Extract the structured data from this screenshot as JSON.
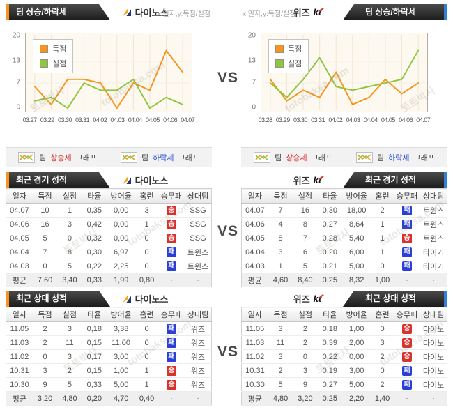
{
  "vs_label": "VS",
  "watermark": {
    "korean": "토토박사",
    "domain": "totobaksa.com"
  },
  "teams": {
    "left": {
      "name": "다이노스"
    },
    "right": {
      "name": "위즈",
      "logo": "kt"
    }
  },
  "sections": {
    "trend": {
      "title": "팀 상승/하락세",
      "axis_hint": "x:일자,y:득점/실점"
    },
    "recent": {
      "title": "최근 경기 성적"
    },
    "h2h": {
      "title": "최근 상대 성적"
    }
  },
  "footer_legend": {
    "rise": {
      "prefix": "팀",
      "label": "상승세",
      "suffix": "그래프"
    },
    "fall": {
      "prefix": "팀",
      "label": "하락세",
      "suffix": "그래프"
    }
  },
  "colors": {
    "score_line": "#f7941d",
    "concede_line": "#8dc63f",
    "win_badge": "#d9322e",
    "loss_badge": "#2b3fd6",
    "tab_accent_left": "#f7941d",
    "tab_accent_right": "#2f80d8"
  },
  "chart_data": [
    {
      "type": "line",
      "team": "다이노스",
      "title": "팀 상승/하락세",
      "xlabel": "일자",
      "ylabel": "득점/실점",
      "x": [
        "03.27",
        "03.29",
        "03.30",
        "03.31",
        "04.02",
        "04.03",
        "04.04",
        "04.05",
        "04.06",
        "04.07"
      ],
      "series": [
        {
          "name": "득점",
          "color": "#f7941d",
          "values": [
            6,
            1,
            8,
            8,
            7,
            0,
            7,
            5,
            16,
            10
          ]
        },
        {
          "name": "실점",
          "color": "#8dc63f",
          "values": [
            2,
            3,
            0,
            7,
            5,
            5,
            8,
            0,
            3,
            1
          ]
        }
      ],
      "ylim": [
        0,
        20
      ],
      "yticks": [
        0,
        7,
        13,
        20
      ],
      "grid": true,
      "legend_position": "top-left"
    },
    {
      "type": "line",
      "team": "위즈 kt",
      "title": "팀 상승/하락세",
      "xlabel": "일자",
      "ylabel": "득점/실점",
      "x": [
        "03.28",
        "03.29",
        "03.30",
        "03.31",
        "04.02",
        "04.03",
        "04.04",
        "04.05",
        "04.06",
        "04.07"
      ],
      "series": [
        {
          "name": "득점",
          "color": "#f7941d",
          "values": [
            8,
            2,
            5,
            3,
            10,
            1,
            3,
            8,
            4,
            7
          ]
        },
        {
          "name": "실점",
          "color": "#8dc63f",
          "values": [
            7,
            3,
            8,
            14,
            6,
            5,
            6,
            7,
            8,
            16
          ]
        }
      ],
      "ylim": [
        0,
        20
      ],
      "yticks": [
        0,
        7,
        13,
        20
      ],
      "grid": true,
      "legend_position": "top-left"
    }
  ],
  "tables": {
    "headers": [
      "일자",
      "득점",
      "실점",
      "타율",
      "방어율",
      "홈런",
      "승무패",
      "상대팀"
    ],
    "recent": {
      "left": {
        "rows": [
          [
            "04.07",
            "10",
            "1",
            "0,35",
            "0,00",
            "3",
            "승",
            "SSG"
          ],
          [
            "04.06",
            "16",
            "3",
            "0,42",
            "0,00",
            "1",
            "승",
            "SSG"
          ],
          [
            "04.05",
            "5",
            "0",
            "0,32",
            "0,00",
            "0",
            "승",
            "SSG"
          ],
          [
            "04.04",
            "7",
            "8",
            "0,30",
            "6,97",
            "0",
            "패",
            "트윈스"
          ],
          [
            "04.03",
            "0",
            "5",
            "0,22",
            "2,25",
            "0",
            "패",
            "트윈스"
          ]
        ],
        "avg": [
          "평균",
          "7,60",
          "3,40",
          "0,33",
          "1,99",
          "0,80",
          "·",
          "·"
        ]
      },
      "right": {
        "rows": [
          [
            "04.07",
            "7",
            "16",
            "0,30",
            "18,00",
            "2",
            "패",
            "트윈스"
          ],
          [
            "04.06",
            "4",
            "8",
            "0,27",
            "8,64",
            "1",
            "패",
            "트윈스"
          ],
          [
            "04.05",
            "8",
            "7",
            "0,28",
            "5,40",
            "1",
            "승",
            "트윈스"
          ],
          [
            "04.04",
            "3",
            "6",
            "0,20",
            "6,00",
            "1",
            "패",
            "타이거"
          ],
          [
            "04.03",
            "1",
            "5",
            "0,21",
            "5,00",
            "0",
            "패",
            "타이거"
          ]
        ],
        "avg": [
          "평균",
          "4,60",
          "8,40",
          "0,25",
          "8,32",
          "1,00",
          "·",
          "·"
        ]
      }
    },
    "h2h": {
      "left": {
        "rows": [
          [
            "11.05",
            "2",
            "3",
            "0,18",
            "3,38",
            "0",
            "패",
            "위즈"
          ],
          [
            "11.03",
            "2",
            "11",
            "0,15",
            "11,00",
            "0",
            "패",
            "위즈"
          ],
          [
            "11.02",
            "0",
            "3",
            "0,17",
            "3,00",
            "0",
            "패",
            "위즈"
          ],
          [
            "10.31",
            "3",
            "2",
            "0,15",
            "1,00",
            "1",
            "승",
            "위즈"
          ],
          [
            "10.30",
            "9",
            "5",
            "0,33",
            "5,00",
            "1",
            "승",
            "위즈"
          ]
        ],
        "avg": [
          "평균",
          "3,20",
          "4,80",
          "0,20",
          "4,70",
          "0,40",
          "·",
          "·"
        ]
      },
      "right": {
        "rows": [
          [
            "11.05",
            "3",
            "2",
            "0,18",
            "1,00",
            "0",
            "승",
            "다이노"
          ],
          [
            "11.03",
            "11",
            "2",
            "0,39",
            "2,00",
            "3",
            "승",
            "다이노"
          ],
          [
            "11.02",
            "3",
            "0",
            "0,22",
            "0,00",
            "2",
            "승",
            "다이노"
          ],
          [
            "10.31",
            "2",
            "3",
            "0,19",
            "3,00",
            "0",
            "패",
            "다이노"
          ],
          [
            "10.30",
            "5",
            "9",
            "0,27",
            "5,00",
            "2",
            "패",
            "다이노"
          ]
        ],
        "avg": [
          "평균",
          "4,80",
          "3,20",
          "0,25",
          "2,20",
          "1,40",
          "·",
          "·"
        ]
      }
    }
  }
}
